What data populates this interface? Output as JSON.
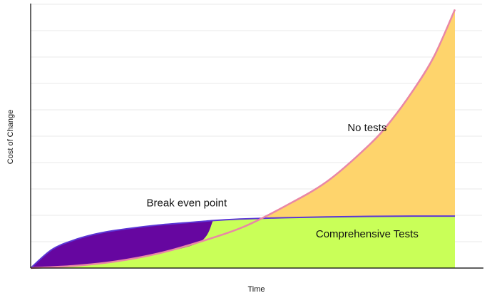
{
  "chart_data": {
    "type": "area",
    "xlabel": "Time",
    "ylabel": "Cost of Change",
    "xlim": [
      0,
      1
    ],
    "ylim": [
      0,
      1
    ],
    "grid": true,
    "gridlines_y": [
      0.1,
      0.2,
      0.3,
      0.4,
      0.5,
      0.6,
      0.7,
      0.8,
      0.9,
      1.0
    ],
    "series": [
      {
        "name": "No tests",
        "stroke": "#e987a6",
        "fill": "#fed46c",
        "x": [
          0,
          0.1,
          0.2,
          0.3,
          0.4,
          0.5,
          0.6,
          0.7,
          0.8,
          0.85,
          0.9,
          0.95,
          1.0
        ],
        "y": [
          0,
          0.008,
          0.025,
          0.055,
          0.1,
          0.155,
          0.235,
          0.33,
          0.47,
          0.56,
          0.67,
          0.8,
          0.98
        ]
      },
      {
        "name": "Comprehensive Tests",
        "stroke": "#5b36d6",
        "fill": "#c9ff58",
        "x": [
          0,
          0.05,
          0.1,
          0.15,
          0.2,
          0.3,
          0.4,
          0.43,
          0.5,
          0.6,
          0.7,
          0.8,
          0.9,
          1.0
        ],
        "y": [
          0,
          0.07,
          0.105,
          0.128,
          0.143,
          0.163,
          0.176,
          0.18,
          0.186,
          0.191,
          0.194,
          0.196,
          0.197,
          0.197
        ]
      }
    ],
    "gap_fill": "#6606a0",
    "annotations": [
      {
        "text": "Break even point",
        "x": 0.43,
        "y": 0.18
      },
      {
        "text": "No tests",
        "x": 0.83,
        "y": 0.47
      },
      {
        "text": "Comprehensive Tests",
        "x": 0.83,
        "y": 0.17
      }
    ]
  }
}
